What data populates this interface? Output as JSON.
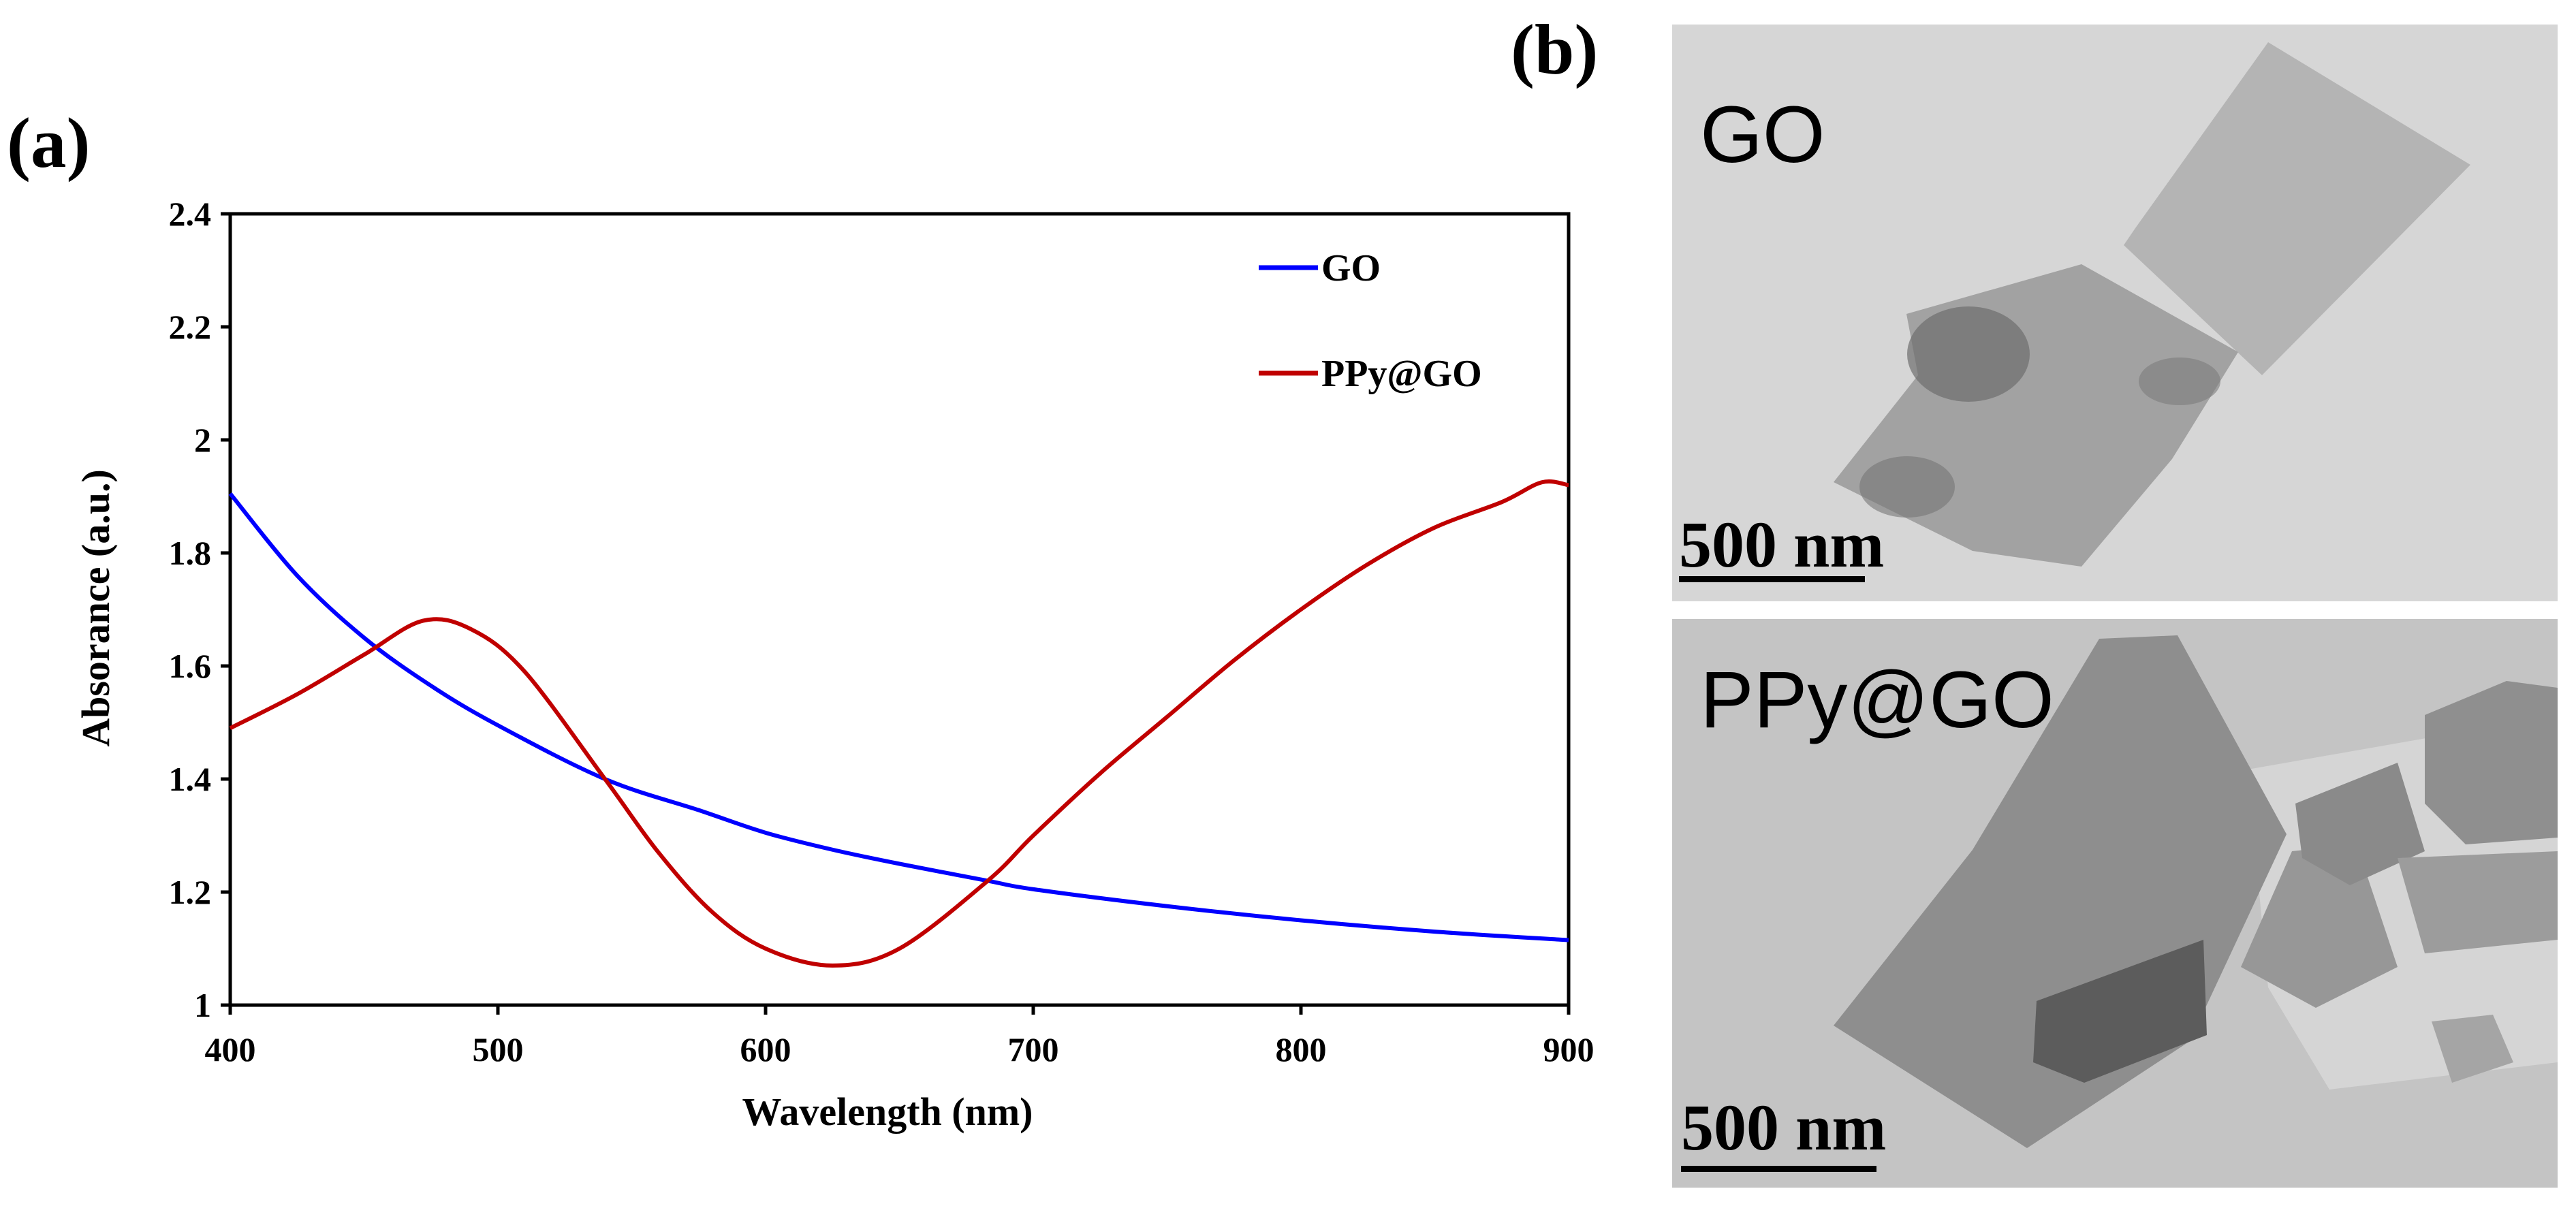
{
  "panel_labels": {
    "a": "(a)",
    "b": "(b)"
  },
  "chart_data": {
    "type": "line",
    "title": "",
    "xlabel": "Wavelength (nm)",
    "ylabel": "Absorance (a.u.)",
    "xlim": [
      400,
      900
    ],
    "ylim": [
      1,
      2.4
    ],
    "xticks": [
      400,
      500,
      600,
      700,
      800,
      900
    ],
    "yticks": [
      1,
      1.2,
      1.4,
      1.6,
      1.8,
      2,
      2.2,
      2.4
    ],
    "ytick_labels": [
      "1",
      "1.2",
      "1.4",
      "1.6",
      "1.8",
      "2",
      "2.2",
      "2.4"
    ],
    "grid": false,
    "legend_position": "top-right",
    "series": [
      {
        "name": "GO",
        "color": "#0000ff",
        "x": [
          400,
          425,
          450,
          475,
          500,
          540,
          575,
          600,
          625,
          650,
          683,
          700,
          750,
          800,
          850,
          900
        ],
        "y": [
          1.905,
          1.76,
          1.65,
          1.565,
          1.495,
          1.4,
          1.345,
          1.305,
          1.275,
          1.25,
          1.22,
          1.205,
          1.175,
          1.15,
          1.13,
          1.115
        ]
      },
      {
        "name": "PPy@GO",
        "color": "#c00000",
        "x": [
          400,
          425,
          450,
          472,
          490,
          510,
          540,
          560,
          580,
          600,
          625,
          650,
          683,
          700,
          725,
          750,
          775,
          800,
          825,
          850,
          875,
          890,
          900
        ],
        "y": [
          1.49,
          1.55,
          1.62,
          1.68,
          1.665,
          1.59,
          1.4,
          1.27,
          1.165,
          1.1,
          1.07,
          1.1,
          1.22,
          1.3,
          1.41,
          1.51,
          1.61,
          1.7,
          1.78,
          1.845,
          1.89,
          1.925,
          1.92
        ]
      }
    ]
  },
  "tem_images": [
    {
      "label": "GO",
      "scale_bar": "500 nm"
    },
    {
      "label": "PPy@GO",
      "scale_bar": "500 nm"
    }
  ]
}
